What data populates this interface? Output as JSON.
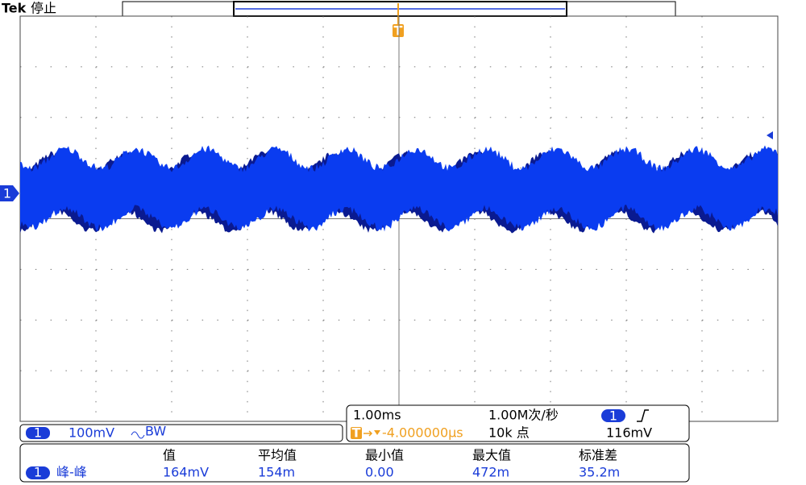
{
  "header": {
    "brand": "Tek",
    "status": "停止",
    "trigger_marker": "T"
  },
  "channel_marker": "1",
  "channel": {
    "number": "1",
    "scale": "100mV",
    "bandwidth_limit": "BW"
  },
  "timebase": {
    "horizontal_scale": "1.00ms",
    "sample_rate": "1.00M次/秒",
    "trigger_source": "1",
    "trigger_level": "116mV",
    "trigger_icon": "T",
    "trigger_position": "-4.000000µs",
    "record_length": "10k 点"
  },
  "measurements": {
    "headers": [
      "值",
      "平均值",
      "最小值",
      "最大值",
      "标准差"
    ],
    "rows": [
      {
        "channel": "1",
        "type": "峰-峰",
        "values": [
          "164mV",
          "154m",
          "0.00",
          "472m",
          "35.2m"
        ]
      }
    ]
  }
}
